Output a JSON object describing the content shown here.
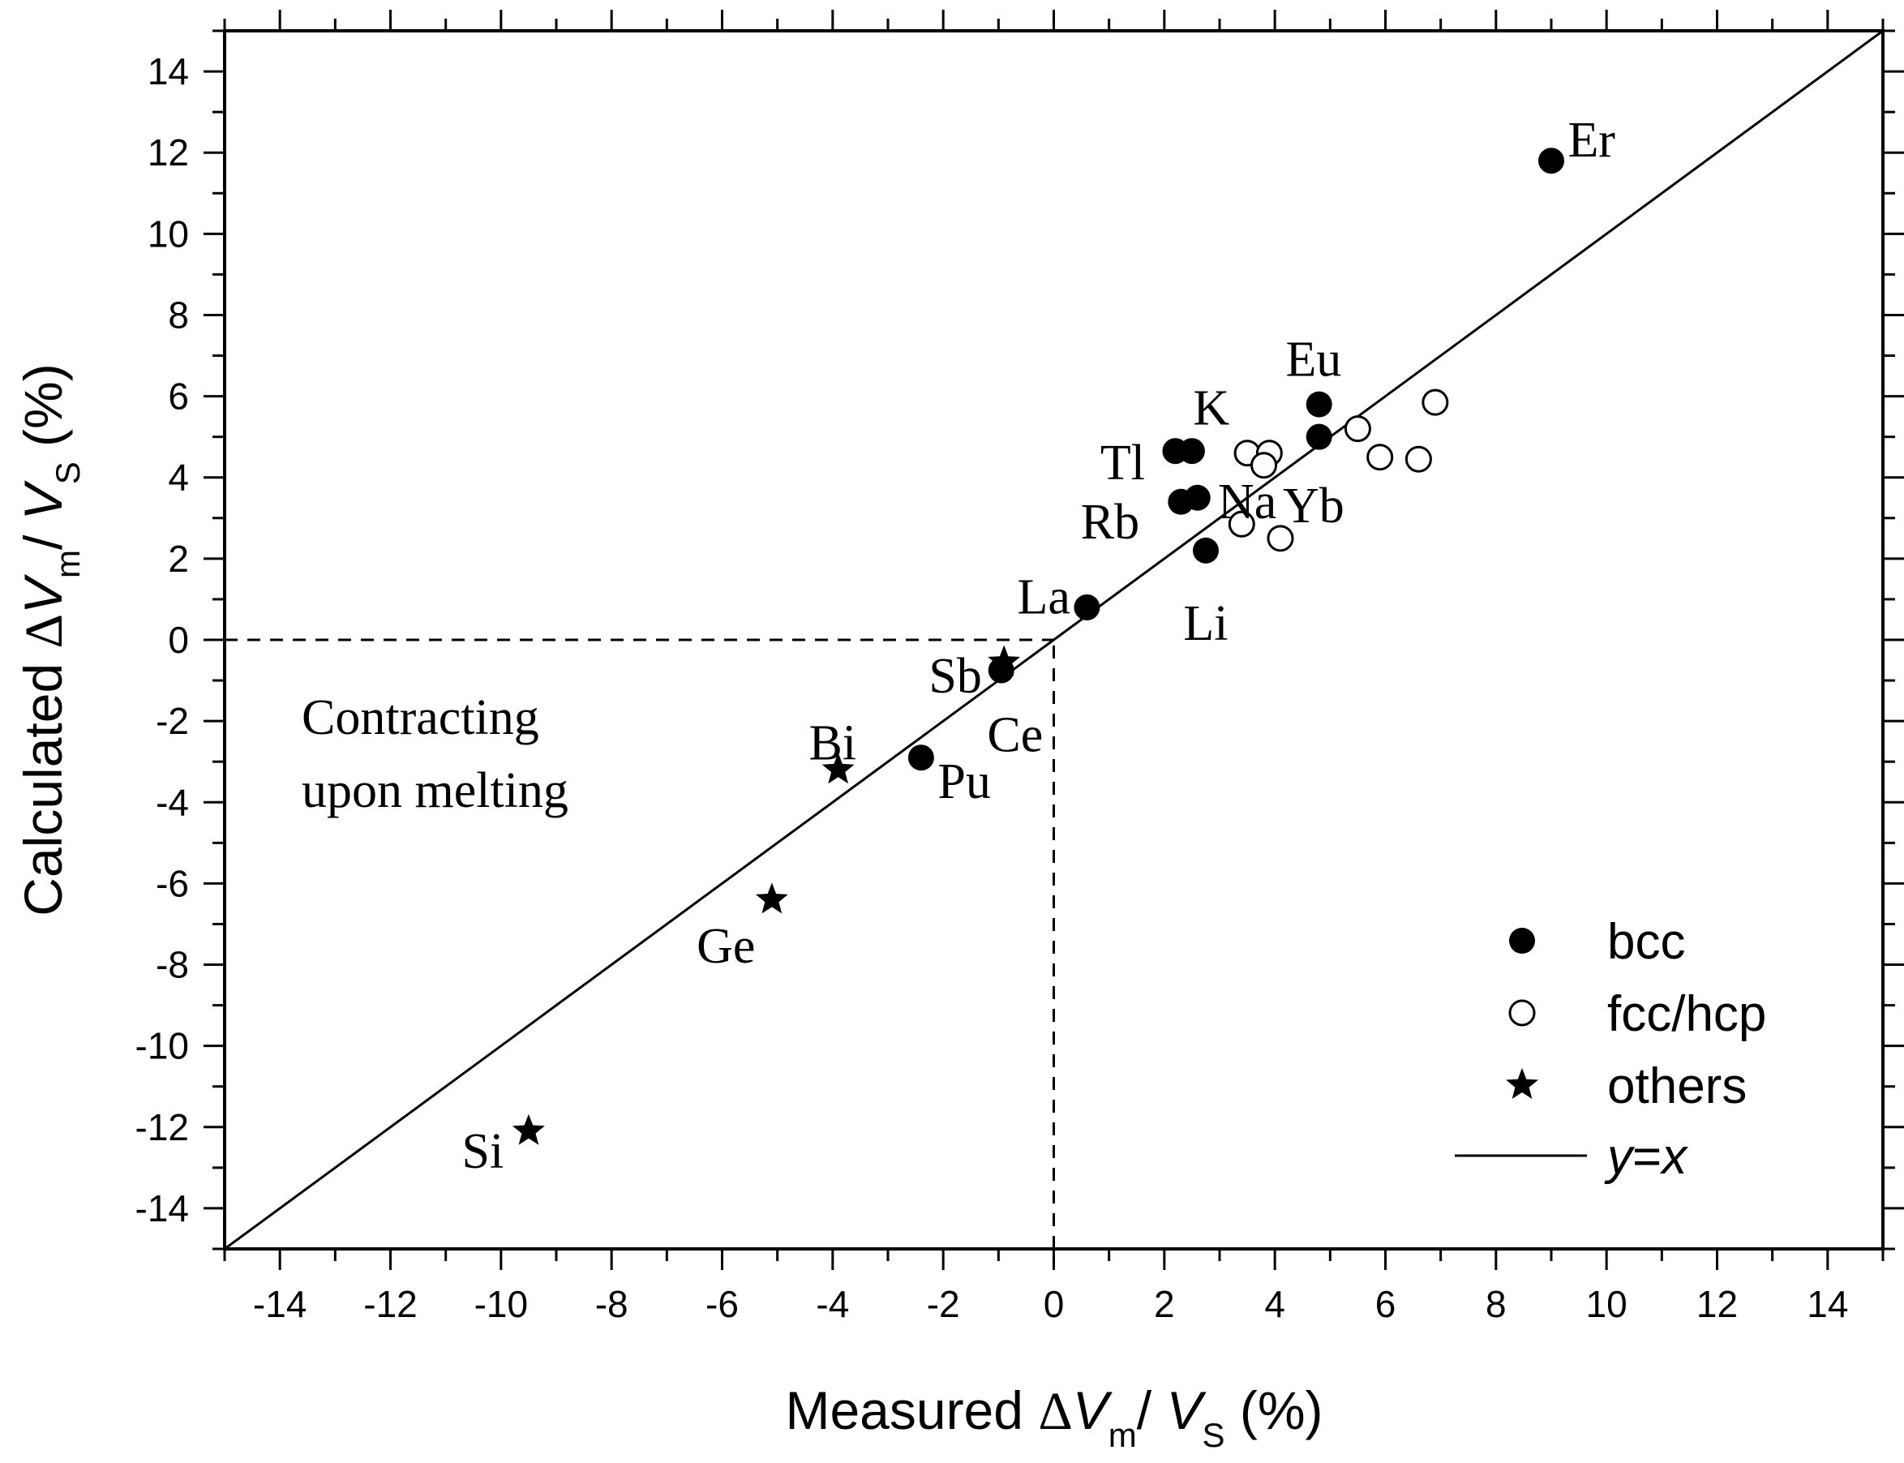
{
  "chart_data": {
    "type": "scatter",
    "title": "",
    "xlabel": {
      "main": "Measured ",
      "delta": "Δ",
      "v1": "V",
      "sub1": "m",
      "slash": "/ ",
      "v2": "V",
      "sub2": "S",
      "unit": " (%)"
    },
    "ylabel": {
      "main": "Calculated ",
      "delta": "Δ",
      "v1": "V",
      "sub1": "m",
      "slash": "/ ",
      "v2": "V",
      "sub2": "S",
      "unit": " (%)"
    },
    "xlim": [
      -15,
      15
    ],
    "ylim": [
      -15,
      15
    ],
    "x_ticks": [
      -14,
      -12,
      -10,
      -8,
      -6,
      -4,
      -2,
      0,
      2,
      4,
      6,
      8,
      10,
      12,
      14
    ],
    "y_ticks": [
      -14,
      -12,
      -10,
      -8,
      -6,
      -4,
      -2,
      0,
      2,
      4,
      6,
      8,
      10,
      12,
      14
    ],
    "reference_line": {
      "label": "y=x",
      "from": [
        -15,
        -15
      ],
      "to": [
        15,
        15
      ]
    },
    "guides": {
      "horizontal": {
        "y": 0,
        "x_from": -15,
        "x_to": 0
      },
      "vertical": {
        "x": 0,
        "y_from": -15,
        "y_to": 0
      }
    },
    "annotation": [
      "Contracting",
      "upon melting"
    ],
    "series": [
      {
        "name": "bcc",
        "marker": "filled-circle",
        "points": [
          {
            "x": 9.0,
            "y": 11.8
          },
          {
            "x": 4.8,
            "y": 5.8
          },
          {
            "x": 4.8,
            "y": 5.0
          },
          {
            "x": 2.2,
            "y": 4.65
          },
          {
            "x": 2.5,
            "y": 4.65
          },
          {
            "x": 2.3,
            "y": 3.4
          },
          {
            "x": 2.6,
            "y": 3.5
          },
          {
            "x": 2.75,
            "y": 2.2
          },
          {
            "x": 0.6,
            "y": 0.8
          },
          {
            "x": -0.95,
            "y": -0.75
          },
          {
            "x": -2.4,
            "y": -2.9
          }
        ]
      },
      {
        "name": "fcc/hcp",
        "marker": "open-circle",
        "points": [
          {
            "x": 3.5,
            "y": 4.6
          },
          {
            "x": 3.9,
            "y": 4.6
          },
          {
            "x": 3.8,
            "y": 4.3
          },
          {
            "x": 5.5,
            "y": 5.2
          },
          {
            "x": 6.9,
            "y": 5.85
          },
          {
            "x": 5.9,
            "y": 4.5
          },
          {
            "x": 6.6,
            "y": 4.45
          },
          {
            "x": 3.4,
            "y": 2.85
          },
          {
            "x": 4.1,
            "y": 2.5
          }
        ]
      },
      {
        "name": "others",
        "marker": "star",
        "points": [
          {
            "x": -0.9,
            "y": -0.55
          },
          {
            "x": -3.9,
            "y": -3.2
          },
          {
            "x": -5.1,
            "y": -6.4
          },
          {
            "x": -9.5,
            "y": -12.1
          }
        ]
      }
    ],
    "point_labels": [
      {
        "text": "Er",
        "x": 9.3,
        "y": 12.3,
        "anchor": "start"
      },
      {
        "text": "Eu",
        "x": 4.7,
        "y": 6.9,
        "anchor": "middle"
      },
      {
        "text": "K",
        "x": 2.85,
        "y": 5.7,
        "anchor": "middle"
      },
      {
        "text": "Tl",
        "x": 1.65,
        "y": 4.35,
        "anchor": "end"
      },
      {
        "text": "Na",
        "x": 3.5,
        "y": 3.4,
        "anchor": "middle"
      },
      {
        "text": "Yb",
        "x": 4.7,
        "y": 3.3,
        "anchor": "middle"
      },
      {
        "text": "Rb",
        "x": 1.55,
        "y": 2.9,
        "anchor": "end"
      },
      {
        "text": "La",
        "x": 0.3,
        "y": 1.05,
        "anchor": "end"
      },
      {
        "text": "Li",
        "x": 2.75,
        "y": 0.4,
        "anchor": "middle"
      },
      {
        "text": "Sb",
        "x": -1.3,
        "y": -0.9,
        "anchor": "end"
      },
      {
        "text": "Ce",
        "x": -0.7,
        "y": -2.35,
        "anchor": "middle"
      },
      {
        "text": "Bi",
        "x": -4.0,
        "y": -2.55,
        "anchor": "middle"
      },
      {
        "text": "Pu",
        "x": -2.1,
        "y": -3.5,
        "anchor": "start"
      },
      {
        "text": "Ge",
        "x": -5.4,
        "y": -7.55,
        "anchor": "end"
      },
      {
        "text": "Si",
        "x": -9.95,
        "y": -12.6,
        "anchor": "end"
      }
    ],
    "legend": {
      "position": "bottom-right",
      "entries": [
        {
          "label": "bcc",
          "marker": "filled-circle"
        },
        {
          "label": "fcc/hcp",
          "marker": "open-circle"
        },
        {
          "label": "others",
          "marker": "star"
        },
        {
          "label_pre": "y",
          "label_mid": "=",
          "label_post": "x",
          "marker": "line"
        }
      ]
    }
  }
}
